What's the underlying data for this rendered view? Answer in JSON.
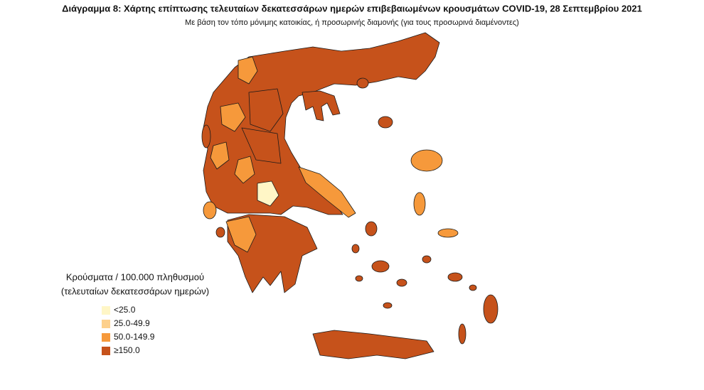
{
  "header": {
    "title": "Διάγραμμα 8: Χάρτης επίπτωσης τελευταίων δεκατεσσάρων ημερών επιβεβαιωμένων κρουσμάτων COVID-19, 28 Σεπτεμβρίου 2021",
    "subtitle": "Με βάση τον τόπο μόνιμης κατοικίας, ή προσωρινής διαμονής (για τους προσωρινά διαμένοντες)"
  },
  "legend": {
    "title": [
      "Κρούσματα / 100.000 πληθυσμού",
      "(τελευταίων δεκατεσσάρων ημερών)"
    ],
    "items": [
      {
        "label": "<25.0",
        "color": "#fff6c6"
      },
      {
        "label": "25.0-49.9",
        "color": "#fdd08c"
      },
      {
        "label": "50.0-149.9",
        "color": "#f6993b"
      },
      {
        "label": "≥150.0",
        "color": "#c6521b"
      }
    ]
  }
}
